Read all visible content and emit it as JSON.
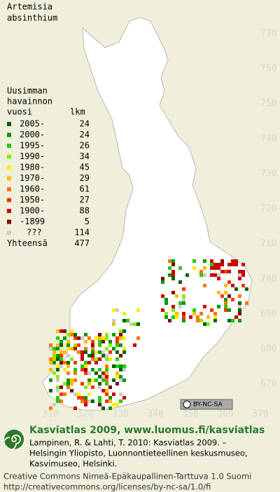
{
  "title": [
    "Artemisia",
    "absinthium"
  ],
  "legend": {
    "heading": [
      "Uusimman",
      "havainnon"
    ],
    "year_header": "vuosi",
    "count_header": "lkm",
    "rows": [
      {
        "label": "2005-",
        "count": 24,
        "color": "#006400"
      },
      {
        "label": "2000-",
        "count": 24,
        "color": "#009a00"
      },
      {
        "label": "1995-",
        "count": 26,
        "color": "#22cc00"
      },
      {
        "label": "1990-",
        "count": 34,
        "color": "#88ee00"
      },
      {
        "label": "1980-",
        "count": 45,
        "color": "#ffee00"
      },
      {
        "label": "1970-",
        "count": 29,
        "color": "#ffbb00"
      },
      {
        "label": "1960-",
        "count": 61,
        "color": "#ff7700"
      },
      {
        "label": "1950-",
        "count": 27,
        "color": "#ff3300"
      },
      {
        "label": "1900-",
        "count": 88,
        "color": "#cc0000"
      },
      {
        "label": "-1899",
        "count": 5,
        "color": "#880000"
      },
      {
        "label": "???",
        "count": 114,
        "color": "#cccccc"
      }
    ],
    "total": {
      "label": "Yhteensä",
      "count": 477
    }
  },
  "y_labels": [
    770,
    760,
    750,
    740,
    730,
    720,
    710,
    700,
    690,
    680,
    670
  ],
  "x_labels": [
    310,
    320,
    330,
    340,
    350,
    360,
    370
  ],
  "badge": "BY-NC-SA",
  "footer": {
    "site": "Kasviatlas 2009, www.luomus.fi/kasviatlas",
    "citation": [
      "Lampinen, R. & Lahti, T. 2010: Kasviatlas 2009. –",
      "Helsingin Yliopisto, Luonnontieteellinen keskusmuseo,",
      "Kasvimuseo, Helsinki."
    ],
    "license": [
      "Creative Commons Nimeä-Epäkaupallinen-Tarttuva 1.0 Suomi",
      "http://creativecommons.org/licenses/by-nc-sa/1.0/fi"
    ]
  }
}
